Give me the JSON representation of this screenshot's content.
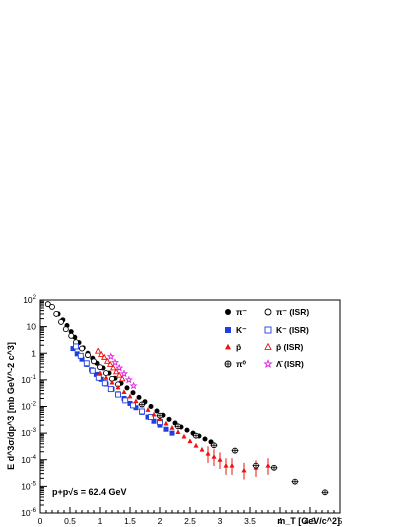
{
  "chart_data": {
    "type": "scatter",
    "title": "",
    "xlabel": "m_T [GeV/c^2]",
    "ylabel": "E d^3σ/dp^3 [mb GeV^-2 c^3]",
    "xlim": [
      0,
      5
    ],
    "ylim": [
      1e-06,
      100
    ],
    "yscale": "log",
    "x_ticks": [
      "0",
      "0.5",
      "1",
      "1.5",
      "2",
      "2.5",
      "3",
      "3.5",
      "4",
      "4.5",
      "5"
    ],
    "y_ticks": [
      "10^-6",
      "10^-5",
      "10^-4",
      "10^-3",
      "10^-2",
      "10^-1",
      "1",
      "10",
      "10^2"
    ],
    "grid": false,
    "legend_position": "top-right",
    "annotation": "p+p√s = 62.4 GeV",
    "series": [
      {
        "name": "π⁻",
        "marker": "filled-circle",
        "color": "#000000",
        "x": [
          0.3,
          0.38,
          0.45,
          0.52,
          0.58,
          0.65,
          0.72,
          0.8,
          0.88,
          0.95,
          1.05,
          1.15,
          1.25,
          1.35,
          1.45,
          1.55,
          1.65,
          1.75,
          1.85,
          1.95,
          2.05,
          2.15,
          2.25,
          2.35,
          2.45,
          2.55,
          2.65,
          2.75,
          2.85
        ],
        "y": [
          30,
          18,
          11,
          6.5,
          4,
          2.5,
          1.6,
          1.0,
          0.65,
          0.42,
          0.28,
          0.18,
          0.115,
          0.075,
          0.05,
          0.033,
          0.022,
          0.015,
          0.01,
          0.0068,
          0.0047,
          0.0033,
          0.0024,
          0.0017,
          0.0013,
          0.001,
          0.00078,
          0.0006,
          0.00047
        ]
      },
      {
        "name": "π⁻ (ISR)",
        "marker": "open-circle",
        "color": "#000000",
        "x": [
          0.13,
          0.2,
          0.27,
          0.35,
          0.43,
          0.52,
          0.6,
          0.7,
          0.8,
          0.9,
          1.0,
          1.1,
          1.2,
          1.3
        ],
        "y": [
          70,
          55,
          30,
          15,
          8,
          4.5,
          2.6,
          1.5,
          0.85,
          0.5,
          0.3,
          0.18,
          0.11,
          0.068
        ]
      },
      {
        "name": "K⁻",
        "marker": "filled-square",
        "color": "#1f3fe0",
        "x": [
          0.55,
          0.62,
          0.7,
          0.78,
          0.86,
          0.94,
          1.02,
          1.1,
          1.2,
          1.3,
          1.4,
          1.5,
          1.6,
          1.7,
          1.8,
          1.9,
          2.0,
          2.1,
          2.2
        ],
        "y": [
          1.5,
          0.95,
          0.6,
          0.38,
          0.24,
          0.16,
          0.105,
          0.07,
          0.045,
          0.03,
          0.02,
          0.013,
          0.009,
          0.006,
          0.004,
          0.0028,
          0.002,
          0.0014,
          0.001
        ]
      },
      {
        "name": "K⁻ (ISR)",
        "marker": "open-square",
        "color": "#1f3fe0",
        "x": [
          0.6,
          0.68,
          0.78,
          0.88,
          0.98,
          1.08,
          1.18,
          1.3,
          1.42,
          1.55,
          1.7,
          1.85,
          2.0
        ],
        "y": [
          1.8,
          0.8,
          0.42,
          0.22,
          0.12,
          0.075,
          0.045,
          0.028,
          0.017,
          0.011,
          0.0065,
          0.004,
          0.0026
        ]
      },
      {
        "name": "p̄",
        "marker": "filled-triangle",
        "color": "#ee1111",
        "x": [
          1.0,
          1.1,
          1.2,
          1.3,
          1.4,
          1.5,
          1.6,
          1.7,
          1.8,
          1.9,
          2.0,
          2.1,
          2.2,
          2.3,
          2.4,
          2.5,
          2.6,
          2.7,
          2.8,
          2.9,
          3.0,
          3.1,
          3.2,
          3.4,
          3.6,
          3.8
        ],
        "y": [
          0.18,
          0.12,
          0.08,
          0.052,
          0.035,
          0.024,
          0.016,
          0.011,
          0.0075,
          0.005,
          0.0034,
          0.0023,
          0.0016,
          0.0011,
          0.00075,
          0.0005,
          0.00034,
          0.00024,
          0.00017,
          0.00013,
          0.0001,
          6e-05,
          6e-05,
          4e-05,
          5e-05,
          6e-05
        ]
      },
      {
        "name": "p̄ (ISR)",
        "marker": "open-triangle",
        "color": "#ee1111",
        "x": [
          0.97,
          1.02,
          1.07,
          1.12,
          1.17,
          1.22,
          1.27,
          1.32,
          1.37
        ],
        "y": [
          1.2,
          0.9,
          0.7,
          0.5,
          0.38,
          0.28,
          0.2,
          0.15,
          0.11
        ]
      },
      {
        "name": "π⁰",
        "marker": "open-cross-circle",
        "color": "#000000",
        "x": [
          1.7,
          2.0,
          2.3,
          2.6,
          2.9,
          3.25,
          3.6,
          3.9,
          4.25,
          4.75
        ],
        "y": [
          0.012,
          0.0045,
          0.0018,
          0.0008,
          0.00035,
          0.00022,
          6e-05,
          5e-05,
          1.5e-05,
          6e-06
        ]
      },
      {
        "name": "Λ̄ (ISR)",
        "marker": "open-star",
        "color": "#e020e0",
        "x": [
          1.18,
          1.25,
          1.32,
          1.4,
          1.48,
          1.56
        ],
        "y": [
          0.75,
          0.45,
          0.28,
          0.17,
          0.1,
          0.06
        ]
      }
    ]
  }
}
